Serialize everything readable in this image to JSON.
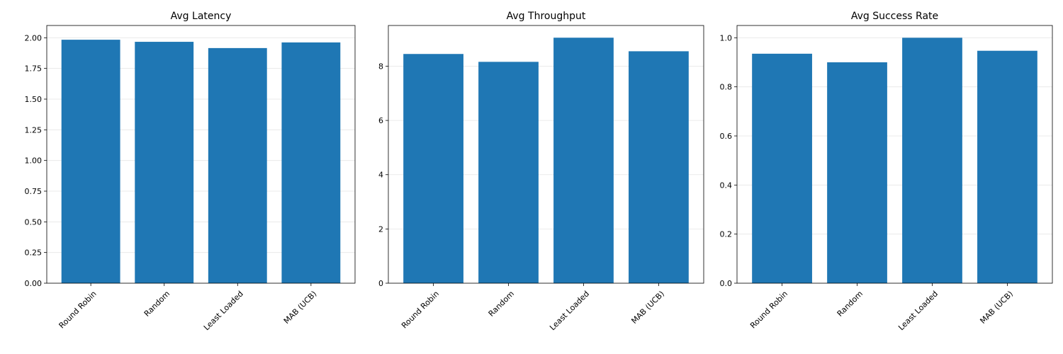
{
  "colors": {
    "bar": "#1f77b4",
    "grid": "#e5e5e5",
    "axis": "#000000"
  },
  "chart_data": [
    {
      "type": "bar",
      "title": "Avg Latency",
      "categories": [
        "Round Robin",
        "Random",
        "Least Loaded",
        "MAB (UCB)"
      ],
      "values": [
        1.984,
        1.967,
        1.916,
        1.962
      ],
      "ylim": [
        0,
        2.1
      ],
      "yticks": [
        "0.00",
        "0.25",
        "0.50",
        "0.75",
        "1.00",
        "1.25",
        "1.50",
        "1.75",
        "2.00"
      ],
      "grid": "y"
    },
    {
      "type": "bar",
      "title": "Avg Throughput",
      "categories": [
        "Round Robin",
        "Random",
        "Least Loaded",
        "MAB (UCB)"
      ],
      "values": [
        8.45,
        8.16,
        9.05,
        8.55
      ],
      "ylim": [
        0,
        9.5
      ],
      "yticks": [
        "0",
        "2",
        "4",
        "6",
        "8"
      ],
      "grid": "y"
    },
    {
      "type": "bar",
      "title": "Avg Success Rate",
      "categories": [
        "Round Robin",
        "Random",
        "Least Loaded",
        "MAB (UCB)"
      ],
      "values": [
        0.935,
        0.9,
        1.0,
        0.947
      ],
      "ylim": [
        0,
        1.05
      ],
      "yticks": [
        "0.0",
        "0.2",
        "0.4",
        "0.6",
        "0.8",
        "1.0"
      ],
      "grid": "y"
    }
  ]
}
